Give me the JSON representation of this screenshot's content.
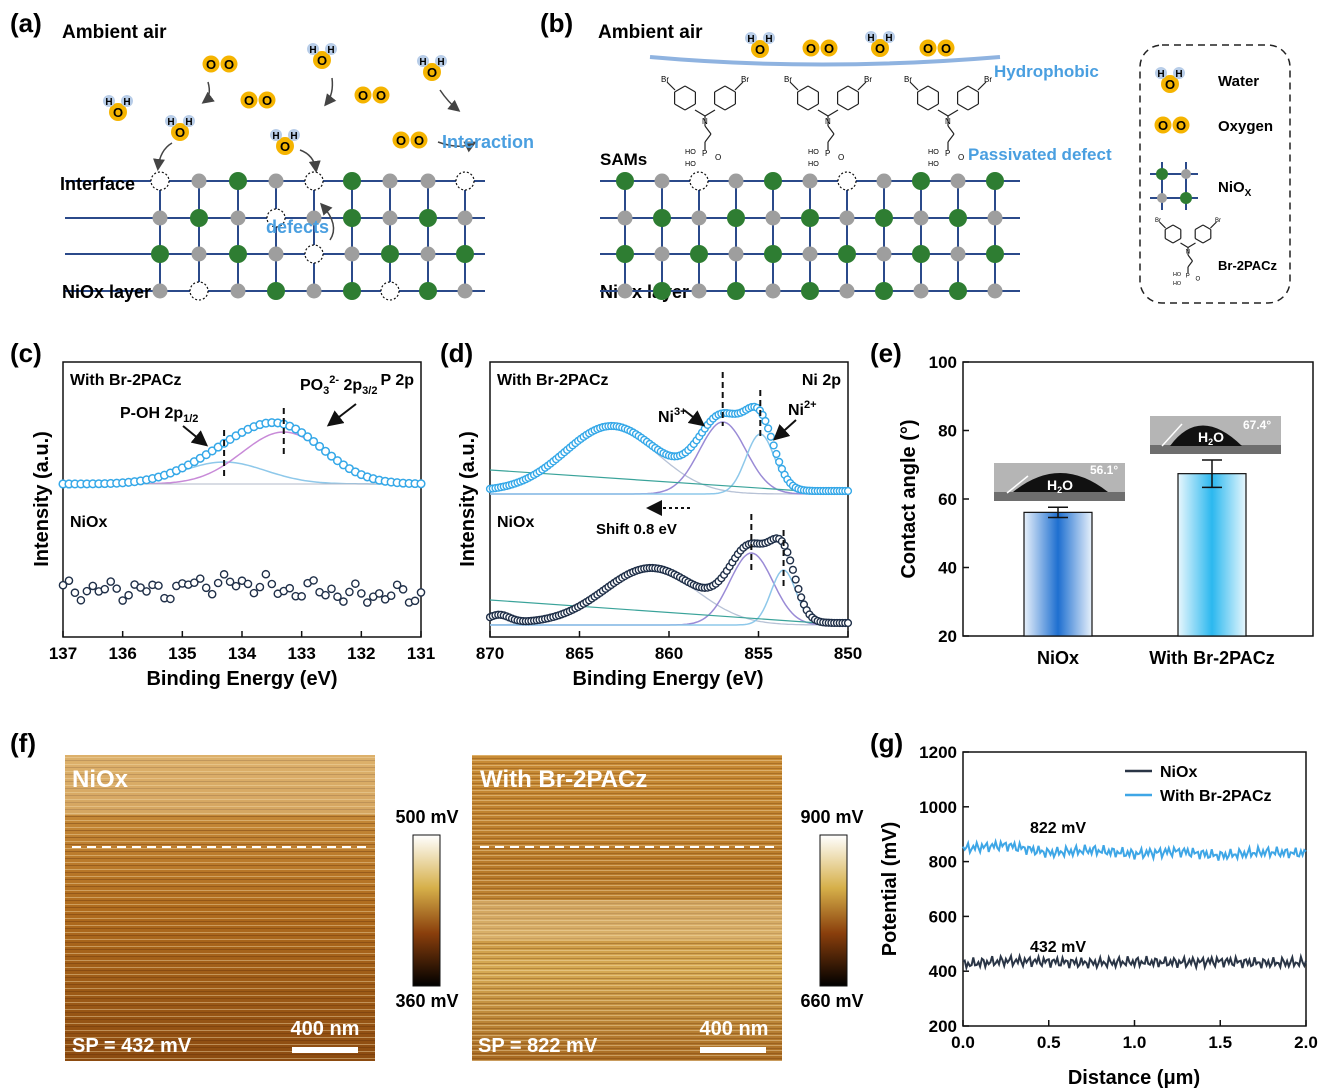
{
  "panel_labels": {
    "a": "(a)",
    "b": "(b)",
    "c": "(c)",
    "d": "(d)",
    "e": "(e)",
    "f": "(f)",
    "g": "(g)"
  },
  "colors": {
    "lattice_line": "#2b4a8a",
    "ni_atom": "#2e7d32",
    "o_atom": "#9e9e9e",
    "molecule": "#f5b400",
    "hydrogen": "#b8cde8",
    "annotation_blue": "#4a9fe0",
    "sams_fit": "#35a8e8",
    "niox_fit": "#1f2f48",
    "p_oh_fit": "#8ec8ea",
    "po3_fit": "#c88ad8",
    "bar_niox": "#1e6fd0",
    "bar_br2pacz": "#2bb8ef",
    "line_niox": "#2a3546",
    "line_br2pacz": "#3ea6e6"
  },
  "panel_a": {
    "ambient": "Ambient air",
    "interaction": "Interaction",
    "interface": "Interface",
    "defects": "defects",
    "layer": "NiOx layer",
    "atom_h": "H",
    "atom_o": "O",
    "oxygen_molecule": "O O"
  },
  "panel_b": {
    "ambient": "Ambient air",
    "hydrophobic": "Hydrophobic",
    "passivated": "Passivated defect",
    "sams": "SAMs",
    "layer": "NiOx layer",
    "mol_br": "Br",
    "mol_n": "N",
    "mol_p": "P",
    "mol_ho": "HO",
    "mol_o": "O"
  },
  "legend_ab": {
    "water": "Water",
    "oxygen": "Oxygen",
    "niox_base": "NiO",
    "niox_sub": "X",
    "br2pacz": "Br-2PACz"
  },
  "panel_c": {
    "top_label": "With Br-2PACz",
    "top_right": "P 2p",
    "bottom_label": "NiOx",
    "peak1_base": "P-OH 2p",
    "peak1_sub": "1/2",
    "peak2_base": "PO",
    "peak2_sub": "3",
    "peak2_sup": "2-",
    "peak2_tail": " 2p",
    "peak2_tail_sub": "3/2",
    "xlabel": "Binding Energy (eV)",
    "ylabel": "Intensity (a.u.)",
    "xticks": [
      "137",
      "136",
      "135",
      "134",
      "133",
      "132",
      "131"
    ]
  },
  "panel_d": {
    "top_label": "With Br-2PACz",
    "top_right": "Ni 2p",
    "bottom_label": "NiOx",
    "ni3": "Ni",
    "ni3_sup": "3+",
    "ni2": "Ni",
    "ni2_sup": "2+",
    "shift": "Shift 0.8 eV",
    "xlabel": "Binding Energy (eV)",
    "ylabel": "Intensity (a.u.)",
    "xticks": [
      "870",
      "865",
      "860",
      "855",
      "850"
    ]
  },
  "panel_e": {
    "ylabel": "Contact angle (°)",
    "yticks": [
      "20",
      "40",
      "60",
      "80",
      "100"
    ],
    "categories": [
      "NiOx",
      "With Br-2PACz"
    ],
    "angle1": "56.1°",
    "angle2": "67.4°",
    "drop_h": "H",
    "drop_sub": "2",
    "drop_o": "O"
  },
  "panel_f": {
    "left_title": "NiOx",
    "left_sp": "SP = 432 mV",
    "left_scale": "400 nm",
    "left_cmax": "500 mV",
    "left_cmin": "360 mV",
    "right_title": "With Br-2PACz",
    "right_sp": "SP = 822 mV",
    "right_scale": "400 nm",
    "right_cmax": "900 mV",
    "right_cmin": "660 mV"
  },
  "panel_g": {
    "legend1": "NiOx",
    "legend2": "With Br-2PACz",
    "ann1": "822 mV",
    "ann2": "432 mV",
    "xlabel": "Distance (μm)",
    "ylabel": "Potential (mV)",
    "xticks": [
      "0.0",
      "0.5",
      "1.0",
      "1.5",
      "2.0"
    ],
    "yticks": [
      "200",
      "400",
      "600",
      "800",
      "1000",
      "1200"
    ]
  },
  "chart_data": [
    {
      "type": "line",
      "panel": "c",
      "xlabel": "Binding Energy (eV)",
      "ylabel": "Intensity (a.u.)",
      "xlim": [
        137,
        131
      ],
      "series": [
        {
          "name": "With Br-2PACz",
          "x": [
            137.0,
            136.0,
            135.0,
            134.5,
            134.0,
            133.5,
            133.0,
            132.5,
            132.0,
            131.0
          ],
          "values": [
            0.0,
            0.04,
            0.22,
            0.4,
            0.58,
            0.66,
            0.6,
            0.4,
            0.15,
            0.0
          ]
        },
        {
          "name": "P-OH 2p1/2",
          "x": [
            136.0,
            135.0,
            134.3,
            133.5,
            132.5
          ],
          "values": [
            0.0,
            0.14,
            0.22,
            0.14,
            0.0
          ]
        },
        {
          "name": "PO3 2- 2p3/2",
          "x": [
            135.5,
            134.5,
            133.3,
            132.3,
            131.5
          ],
          "values": [
            0.0,
            0.25,
            0.52,
            0.22,
            0.0
          ]
        },
        {
          "name": "NiOx",
          "x": [
            137.0,
            136.0,
            135.0,
            134.0,
            133.0,
            132.0,
            131.0
          ],
          "values": [
            0.05,
            0.03,
            0.06,
            0.1,
            0.04,
            0.0,
            -0.02
          ]
        }
      ]
    },
    {
      "type": "line",
      "panel": "d",
      "xlabel": "Binding Energy (eV)",
      "ylabel": "Intensity (a.u.)",
      "xlim": [
        870,
        850
      ],
      "series": [
        {
          "name": "With Br-2PACz",
          "x": [
            870,
            866,
            863,
            860,
            857,
            855.3,
            853.5,
            852,
            850
          ],
          "values": [
            0.1,
            0.45,
            0.62,
            0.5,
            0.78,
            0.9,
            0.4,
            0.06,
            0.0
          ]
        },
        {
          "name": "NiOx",
          "x": [
            870,
            865,
            861,
            858,
            855.5,
            853.8,
            852.5,
            850
          ],
          "values": [
            0.1,
            0.35,
            0.55,
            0.38,
            0.78,
            0.88,
            0.25,
            0.0
          ]
        }
      ]
    },
    {
      "type": "bar",
      "panel": "e",
      "categories": [
        "NiOx",
        "With Br-2PACz"
      ],
      "values": [
        56.1,
        67.4
      ],
      "errors": [
        1.5,
        4.0
      ],
      "ylabel": "Contact angle (°)",
      "ylim": [
        20,
        100
      ]
    },
    {
      "type": "line",
      "panel": "g",
      "xlabel": "Distance (μm)",
      "ylabel": "Potential (mV)",
      "xlim": [
        0,
        2
      ],
      "ylim": [
        200,
        1200
      ],
      "series": [
        {
          "name": "NiOx",
          "x": [
            0.0,
            0.25,
            0.5,
            0.75,
            1.0,
            1.25,
            1.5,
            1.75,
            2.0
          ],
          "values": [
            425,
            438,
            435,
            430,
            434,
            432,
            436,
            430,
            432
          ]
        },
        {
          "name": "With Br-2PACz",
          "x": [
            0.0,
            0.25,
            0.5,
            0.75,
            1.0,
            1.25,
            1.5,
            1.75,
            2.0
          ],
          "values": [
            848,
            860,
            832,
            842,
            828,
            838,
            822,
            835,
            830
          ]
        }
      ]
    }
  ]
}
